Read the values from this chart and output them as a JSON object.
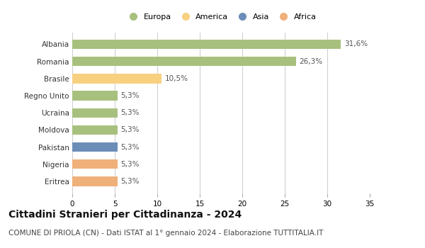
{
  "categories": [
    "Albania",
    "Romania",
    "Brasile",
    "Regno Unito",
    "Ucraina",
    "Moldova",
    "Pakistan",
    "Nigeria",
    "Eritrea"
  ],
  "values": [
    31.6,
    26.3,
    10.5,
    5.3,
    5.3,
    5.3,
    5.3,
    5.3,
    5.3
  ],
  "labels": [
    "31,6%",
    "26,3%",
    "10,5%",
    "5,3%",
    "5,3%",
    "5,3%",
    "5,3%",
    "5,3%",
    "5,3%"
  ],
  "colors": [
    "#a8c07e",
    "#a8c07e",
    "#f7d080",
    "#a8c07e",
    "#a8c07e",
    "#a8c07e",
    "#6b8db8",
    "#f0b07a",
    "#f0b07a"
  ],
  "legend_labels": [
    "Europa",
    "America",
    "Asia",
    "Africa"
  ],
  "legend_colors": [
    "#a8c07e",
    "#f7d080",
    "#6b8db8",
    "#f0b07a"
  ],
  "xlim": [
    0,
    35
  ],
  "xticks": [
    0,
    5,
    10,
    15,
    20,
    25,
    30,
    35
  ],
  "title": "Cittadini Stranieri per Cittadinanza - 2024",
  "subtitle": "COMUNE DI PRIOLA (CN) - Dati ISTAT al 1° gennaio 2024 - Elaborazione TUTTITALIA.IT",
  "title_fontsize": 10,
  "subtitle_fontsize": 7.5,
  "background_color": "#ffffff",
  "grid_color": "#cccccc",
  "bar_height": 0.55
}
